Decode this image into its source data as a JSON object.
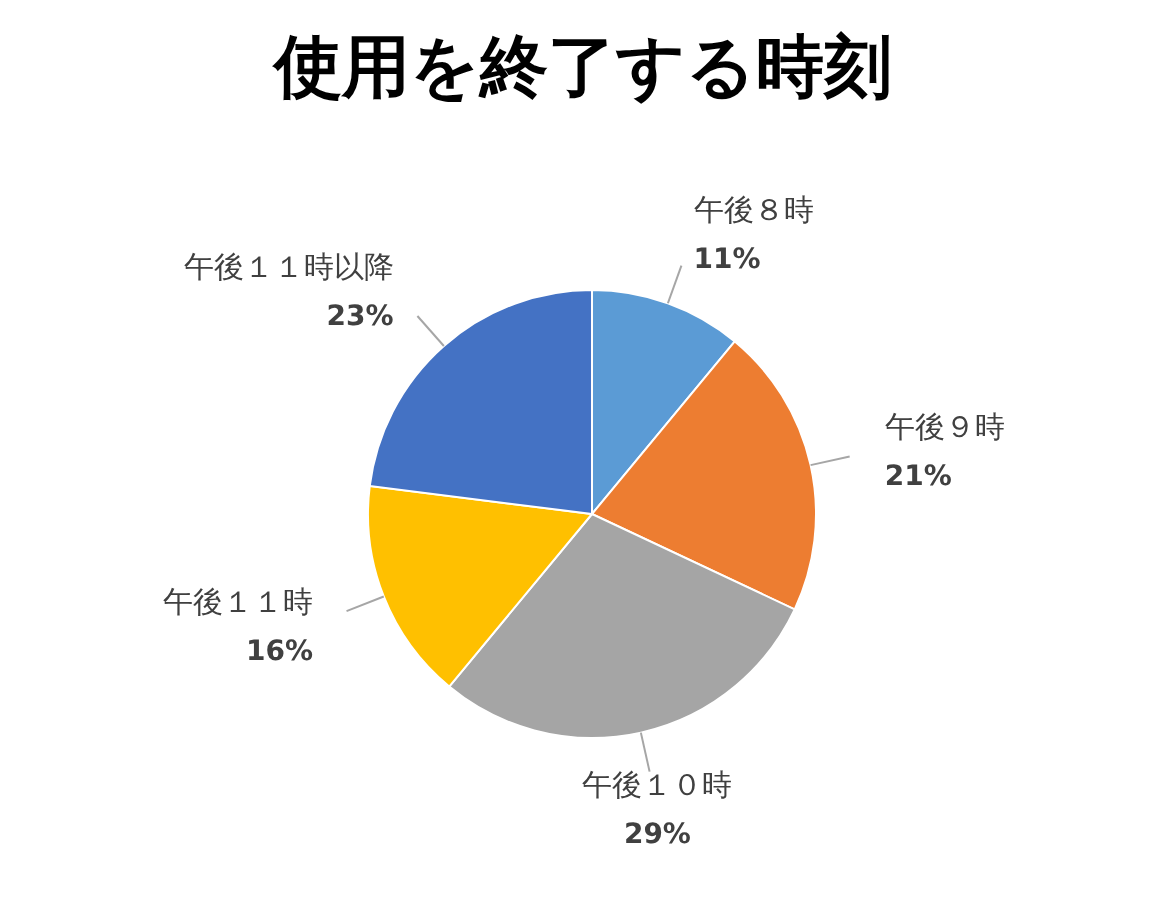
{
  "chart_data": {
    "type": "pie",
    "title": "使用を終了する時刻",
    "categories": [
      "午後８時",
      "午後９時",
      "午後１０時",
      "午後１１時",
      "午後１１時以降"
    ],
    "values": [
      11,
      21,
      29,
      16,
      23
    ],
    "value_labels": [
      "11%",
      "21%",
      "29%",
      "16%",
      "23%"
    ],
    "colors": [
      "#5b9bd5",
      "#ed7d31",
      "#a5a5a5",
      "#ffc000",
      "#4472c4"
    ],
    "legend": false
  }
}
